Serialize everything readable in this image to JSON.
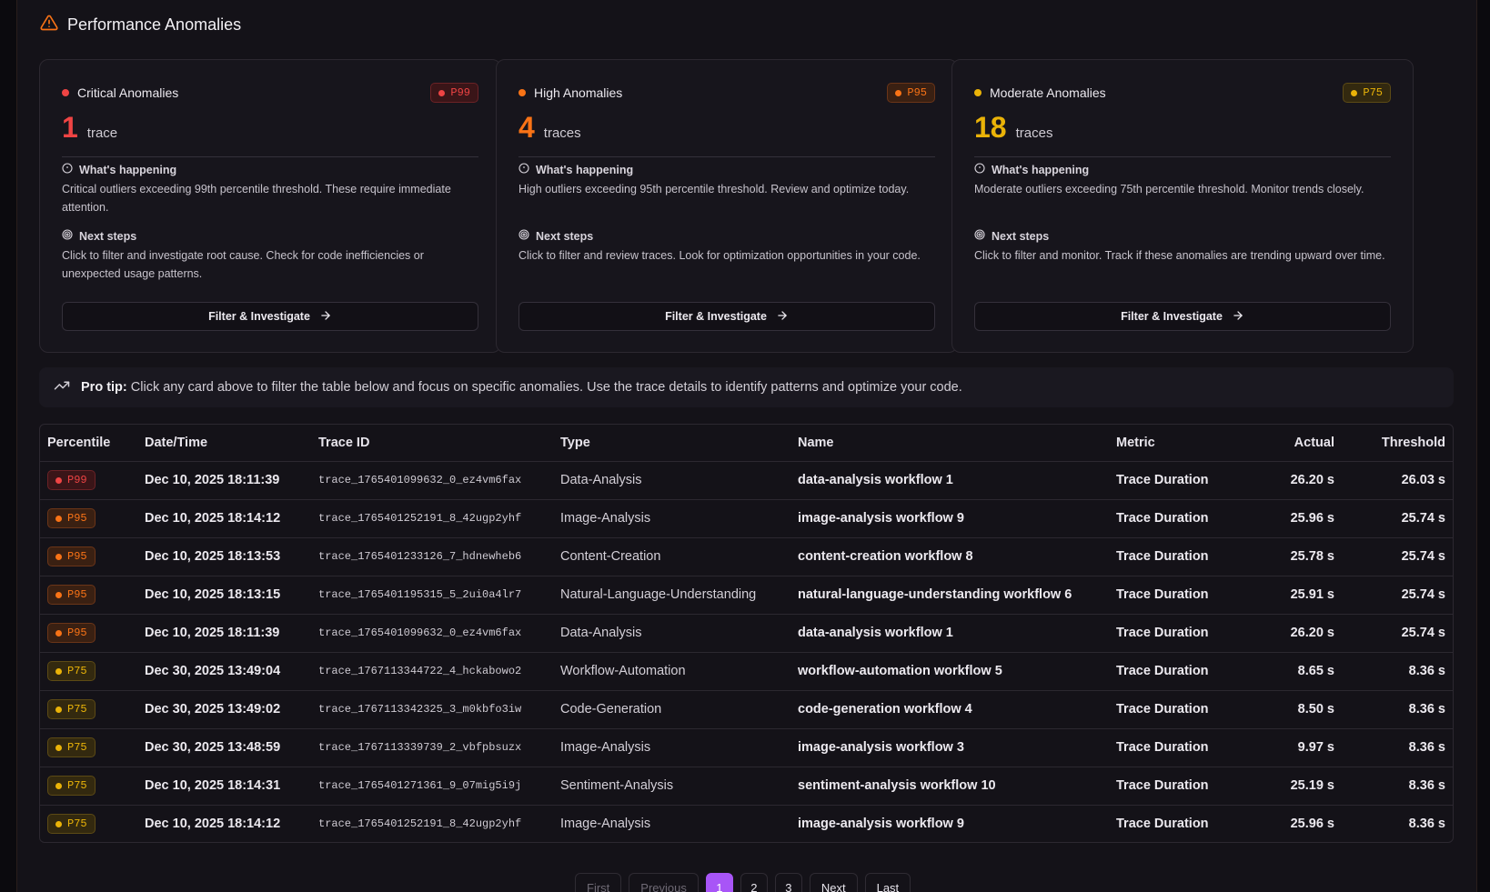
{
  "header": {
    "title": "Performance Anomalies"
  },
  "cards": [
    {
      "title": "Critical Anomalies",
      "badge": "P99",
      "count": "1",
      "unit": "trace",
      "what_heading": "What's happening",
      "what_text": "Critical outliers exceeding 99th percentile threshold. These require immediate attention.",
      "next_heading": "Next steps",
      "next_text": "Click to filter and investigate root cause. Check for code inefficiencies or unexpected usage patterns.",
      "button": "Filter & Investigate",
      "color": "#ef4444",
      "badge_bg": "#3a1518",
      "badge_border": "#6b2226"
    },
    {
      "title": "High Anomalies",
      "badge": "P95",
      "count": "4",
      "unit": "traces",
      "what_heading": "What's happening",
      "what_text": "High outliers exceeding 95th percentile threshold. Review and optimize today.",
      "next_heading": "Next steps",
      "next_text": "Click to filter and review traces. Look for optimization opportunities in your code.",
      "button": "Filter & Investigate",
      "color": "#f97316",
      "badge_bg": "#3a2012",
      "badge_border": "#6b3518"
    },
    {
      "title": "Moderate Anomalies",
      "badge": "P75",
      "count": "18",
      "unit": "traces",
      "what_heading": "What's happening",
      "what_text": "Moderate outliers exceeding 75th percentile threshold. Monitor trends closely.",
      "next_heading": "Next steps",
      "next_text": "Click to filter and monitor. Track if these anomalies are trending upward over time.",
      "button": "Filter & Investigate",
      "color": "#eab308",
      "badge_bg": "#33290f",
      "badge_border": "#5c4a15"
    }
  ],
  "tip": {
    "label": "Pro tip:",
    "text": "Click any card above to filter the table below and focus on specific anomalies. Use the trace details to identify patterns and optimize your code."
  },
  "table": {
    "headers": [
      "Percentile",
      "Date/Time",
      "Trace ID",
      "Type",
      "Name",
      "Metric",
      "Actual",
      "Threshold"
    ],
    "rows": [
      {
        "percentile": "P99",
        "date": "Dec 10, 2025 18:11:39",
        "trace_id": "trace_1765401099632_0_ez4vm6fax",
        "type": "Data-Analysis",
        "name": "data-analysis workflow 1",
        "metric": "Trace Duration",
        "actual": "26.20 s",
        "threshold": "26.03 s"
      },
      {
        "percentile": "P95",
        "date": "Dec 10, 2025 18:14:12",
        "trace_id": "trace_1765401252191_8_42ugp2yhf",
        "type": "Image-Analysis",
        "name": "image-analysis workflow 9",
        "metric": "Trace Duration",
        "actual": "25.96 s",
        "threshold": "25.74 s"
      },
      {
        "percentile": "P95",
        "date": "Dec 10, 2025 18:13:53",
        "trace_id": "trace_1765401233126_7_hdnewheb6",
        "type": "Content-Creation",
        "name": "content-creation workflow 8",
        "metric": "Trace Duration",
        "actual": "25.78 s",
        "threshold": "25.74 s"
      },
      {
        "percentile": "P95",
        "date": "Dec 10, 2025 18:13:15",
        "trace_id": "trace_1765401195315_5_2ui0a4lr7",
        "type": "Natural-Language-Understanding",
        "name": "natural-language-understanding workflow 6",
        "metric": "Trace Duration",
        "actual": "25.91 s",
        "threshold": "25.74 s"
      },
      {
        "percentile": "P95",
        "date": "Dec 10, 2025 18:11:39",
        "trace_id": "trace_1765401099632_0_ez4vm6fax",
        "type": "Data-Analysis",
        "name": "data-analysis workflow 1",
        "metric": "Trace Duration",
        "actual": "26.20 s",
        "threshold": "25.74 s"
      },
      {
        "percentile": "P75",
        "date": "Dec 30, 2025 13:49:04",
        "trace_id": "trace_1767113344722_4_hckabowo2",
        "type": "Workflow-Automation",
        "name": "workflow-automation workflow 5",
        "metric": "Trace Duration",
        "actual": "8.65 s",
        "threshold": "8.36 s"
      },
      {
        "percentile": "P75",
        "date": "Dec 30, 2025 13:49:02",
        "trace_id": "trace_1767113342325_3_m0kbfo3iw",
        "type": "Code-Generation",
        "name": "code-generation workflow 4",
        "metric": "Trace Duration",
        "actual": "8.50 s",
        "threshold": "8.36 s"
      },
      {
        "percentile": "P75",
        "date": "Dec 30, 2025 13:48:59",
        "trace_id": "trace_1767113339739_2_vbfpbsuzx",
        "type": "Image-Analysis",
        "name": "image-analysis workflow 3",
        "metric": "Trace Duration",
        "actual": "9.97 s",
        "threshold": "8.36 s"
      },
      {
        "percentile": "P75",
        "date": "Dec 10, 2025 18:14:31",
        "trace_id": "trace_1765401271361_9_07mig5i9j",
        "type": "Sentiment-Analysis",
        "name": "sentiment-analysis workflow 10",
        "metric": "Trace Duration",
        "actual": "25.19 s",
        "threshold": "8.36 s"
      },
      {
        "percentile": "P75",
        "date": "Dec 10, 2025 18:14:12",
        "trace_id": "trace_1765401252191_8_42ugp2yhf",
        "type": "Image-Analysis",
        "name": "image-analysis workflow 9",
        "metric": "Trace Duration",
        "actual": "25.96 s",
        "threshold": "8.36 s"
      }
    ]
  },
  "pagination": {
    "first": "First",
    "previous": "Previous",
    "pages": [
      "1",
      "2",
      "3"
    ],
    "current": "1",
    "next": "Next",
    "last": "Last"
  },
  "colors": {
    "accent": "#a855f7",
    "warning_icon": "#f97316"
  }
}
